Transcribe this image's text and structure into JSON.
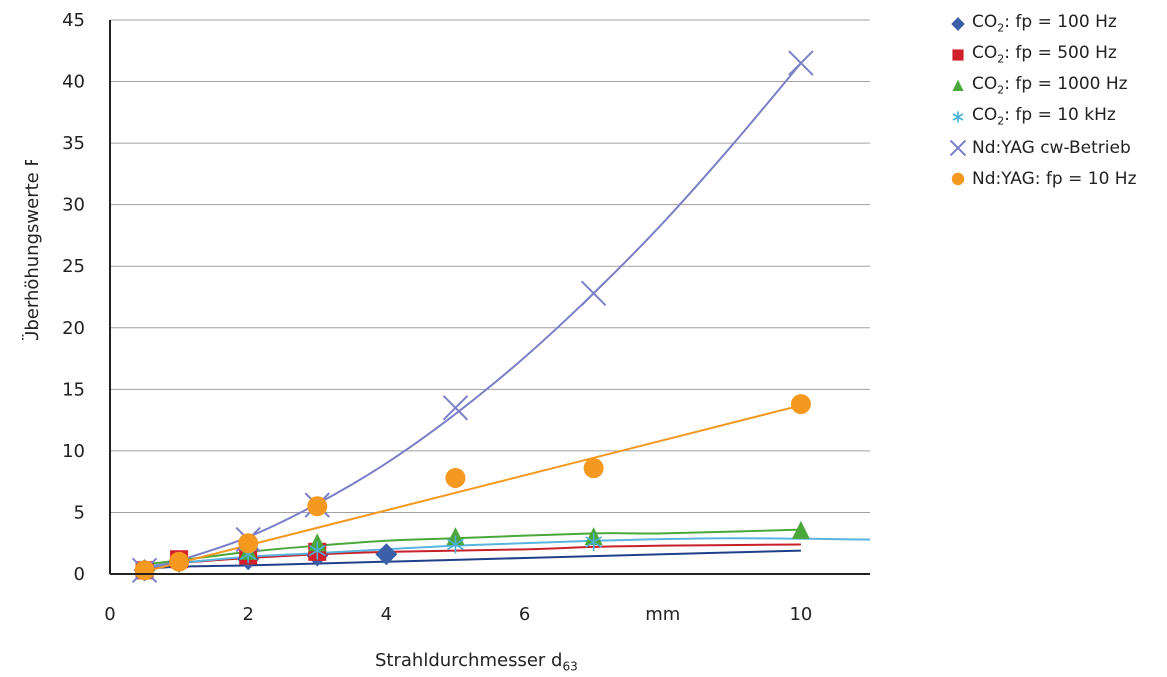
{
  "chart_data": {
    "type": "scatter",
    "xlabel": "Strahldurchmesser",
    "xlabel_sub": "63",
    "xlabel_prefix": "d",
    "ylabel": "Überhöhungswerte F",
    "xlim": [
      0,
      11
    ],
    "ylim": [
      0,
      45
    ],
    "x_ticks": [
      "0",
      "2",
      "4",
      "6",
      "mm",
      "10"
    ],
    "x_tick_values": [
      0,
      2,
      4,
      6,
      8,
      10
    ],
    "y_ticks": [
      0,
      5,
      10,
      15,
      20,
      25,
      30,
      35,
      40,
      45
    ],
    "grid": "horizontal",
    "legend_position": "right",
    "series": [
      {
        "name_prefix": "CO",
        "name_sub": "2",
        "name_suffix": ": fp = 100 Hz",
        "color": "#3b5fa8",
        "line_color": "#1f3f8a",
        "marker": "diamond",
        "points": [
          [
            0.5,
            0.3
          ],
          [
            1,
            1.0
          ],
          [
            2,
            1.2
          ],
          [
            3,
            1.5
          ],
          [
            4,
            1.6
          ]
        ],
        "trend": [
          [
            0.5,
            0.4
          ],
          [
            1,
            0.6
          ],
          [
            2,
            0.7
          ],
          [
            4,
            1.0
          ],
          [
            6,
            1.3
          ],
          [
            8,
            1.6
          ],
          [
            10,
            1.9
          ]
        ]
      },
      {
        "name_prefix": "CO",
        "name_sub": "2",
        "name_suffix": ": fp = 500 Hz",
        "color": "#d0202a",
        "line_color": "#c8202a",
        "marker": "square",
        "points": [
          [
            0.5,
            0.3
          ],
          [
            1,
            1.2
          ],
          [
            2,
            1.5
          ],
          [
            3,
            1.8
          ]
        ],
        "trend": [
          [
            0.5,
            0.6
          ],
          [
            1,
            0.9
          ],
          [
            2,
            1.3
          ],
          [
            3,
            1.6
          ],
          [
            4,
            1.8
          ],
          [
            6,
            2.0
          ],
          [
            7,
            2.2
          ],
          [
            8,
            2.3
          ],
          [
            10,
            2.4
          ]
        ]
      },
      {
        "name_prefix": "CO",
        "name_sub": "2",
        "name_suffix": ": fp = 1000 Hz",
        "color": "#4aa83a",
        "line_color": "#4aa83a",
        "marker": "triangle",
        "points": [
          [
            0.5,
            0.3
          ],
          [
            2,
            1.8
          ],
          [
            3,
            2.5
          ],
          [
            5,
            3.0
          ],
          [
            7,
            3.0
          ],
          [
            10,
            3.5
          ]
        ],
        "trend": [
          [
            0.5,
            0.8
          ],
          [
            1,
            1.1
          ],
          [
            2,
            1.8
          ],
          [
            3,
            2.3
          ],
          [
            4,
            2.7
          ],
          [
            5,
            2.9
          ],
          [
            7,
            3.3
          ],
          [
            8,
            3.3
          ],
          [
            10,
            3.6
          ]
        ]
      },
      {
        "name_prefix": "CO",
        "name_sub": "2",
        "name_suffix": ": fp = 10 kHz",
        "color": "#4ab0d8",
        "line_color": "#5ab4e0",
        "marker": "asterisk",
        "points": [
          [
            0.5,
            0.3
          ],
          [
            1,
            1.0
          ],
          [
            2,
            1.6
          ],
          [
            3,
            1.9
          ],
          [
            5,
            2.4
          ],
          [
            7,
            2.6
          ]
        ],
        "trend": [
          [
            0.5,
            0.6
          ],
          [
            1,
            0.9
          ],
          [
            2,
            1.4
          ],
          [
            3,
            1.7
          ],
          [
            5,
            2.3
          ],
          [
            7,
            2.7
          ],
          [
            9,
            2.9
          ],
          [
            11,
            2.8
          ]
        ]
      },
      {
        "name": "Nd:YAG cw-Betrieb",
        "color": "#7b7fc8",
        "line_color": "#7b7fc8",
        "marker": "x",
        "points": [
          [
            0.5,
            0.3
          ],
          [
            2,
            2.8
          ],
          [
            3,
            5.6
          ],
          [
            5,
            13.5
          ],
          [
            7,
            22.8
          ],
          [
            10,
            41.5
          ]
        ],
        "trend": [
          [
            0.5,
            0.4
          ],
          [
            1,
            1.1
          ],
          [
            2,
            3.0
          ],
          [
            3,
            5.7
          ],
          [
            4,
            9.0
          ],
          [
            5,
            13.0
          ],
          [
            6,
            17.6
          ],
          [
            7,
            22.8
          ],
          [
            8,
            28.5
          ],
          [
            9,
            34.8
          ],
          [
            10,
            41.5
          ]
        ]
      },
      {
        "name": "Nd:YAG: fp = 10 Hz",
        "color": "#f5981f",
        "line_color": "#f5981f",
        "marker": "circle",
        "points": [
          [
            0.5,
            0.3
          ],
          [
            1,
            1.0
          ],
          [
            2,
            2.5
          ],
          [
            3,
            5.5
          ],
          [
            5,
            7.8
          ],
          [
            7,
            8.6
          ],
          [
            10,
            13.8
          ]
        ],
        "trend": [
          [
            0.5,
            0.2
          ],
          [
            10,
            13.7
          ]
        ]
      }
    ]
  }
}
